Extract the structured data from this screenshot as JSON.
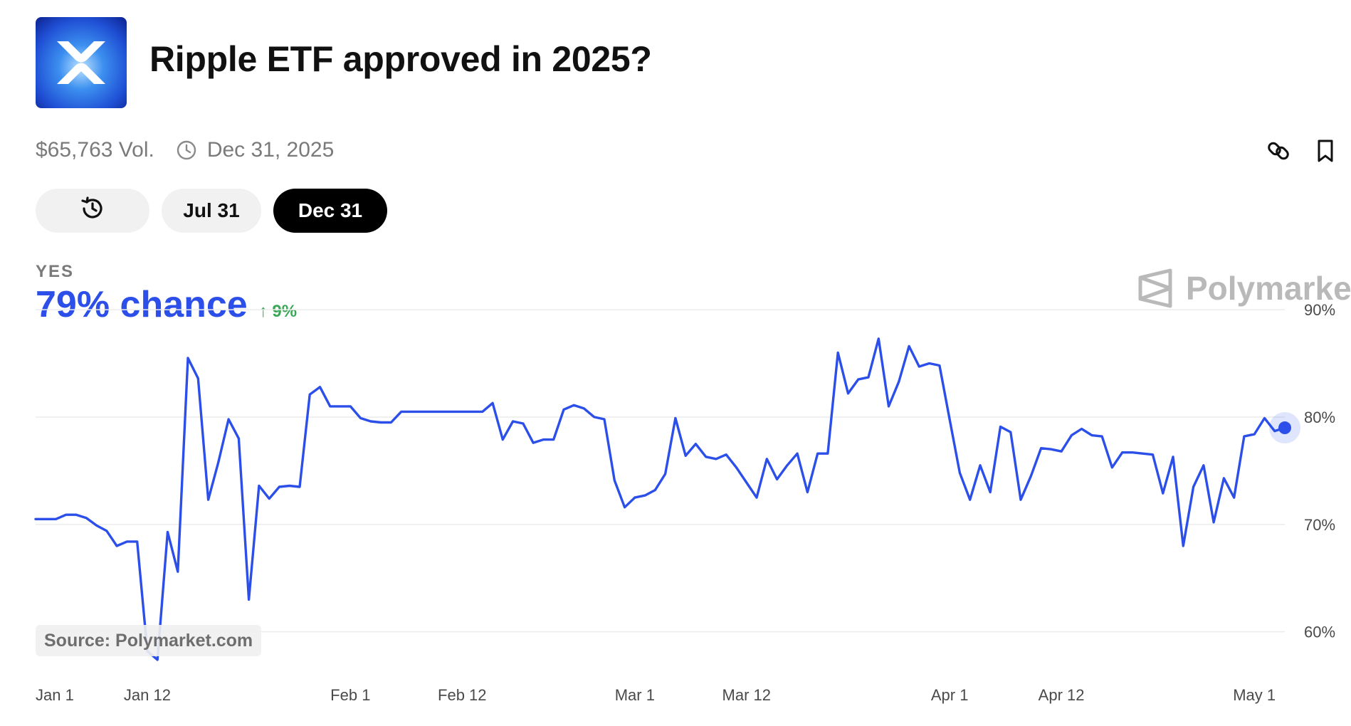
{
  "market": {
    "title": "Ripple ETF approved in 2025?",
    "logo_icon": "xrp-logo-icon",
    "volume": "$65,763 Vol.",
    "end_date": "Dec 31, 2025"
  },
  "actions": {
    "link_icon": "link-icon",
    "bookmark_icon": "bookmark-icon"
  },
  "date_tabs": {
    "history_icon": "history-icon",
    "items": [
      "Jul 31",
      "Dec 31"
    ],
    "active": "Dec 31"
  },
  "outcome": {
    "label": "YES",
    "chance": "79% chance",
    "change": "↑ 9%"
  },
  "brand": {
    "name": "Polymarket"
  },
  "source": "Source: Polymarket.com",
  "colors": {
    "line": "#2b4fe8",
    "up": "#3aa757",
    "active_tab": "#000000"
  },
  "chart_data": {
    "type": "line",
    "series": [
      {
        "values": [
          {
            "x": "Jan 1",
            "y": 70.5
          },
          {
            "x": "Jan 2",
            "y": 70.5
          },
          {
            "x": "Jan 3",
            "y": 70.5
          },
          {
            "x": "Jan 4",
            "y": 70.9
          },
          {
            "x": "Jan 5",
            "y": 70.9
          },
          {
            "x": "Jan 6",
            "y": 70.6
          },
          {
            "x": "Jan 7",
            "y": 69.9
          },
          {
            "x": "Jan 8",
            "y": 69.4
          },
          {
            "x": "Jan 9",
            "y": 68.0
          },
          {
            "x": "Jan 10",
            "y": 68.4
          },
          {
            "x": "Jan 11",
            "y": 68.4
          },
          {
            "x": "Jan 12",
            "y": 58.2
          },
          {
            "x": "Jan 13",
            "y": 57.4
          },
          {
            "x": "Jan 14",
            "y": 69.3
          },
          {
            "x": "Jan 15",
            "y": 65.6
          },
          {
            "x": "Jan 16",
            "y": 85.5
          },
          {
            "x": "Jan 17",
            "y": 83.6
          },
          {
            "x": "Jan 18",
            "y": 72.3
          },
          {
            "x": "Jan 19",
            "y": 75.8
          },
          {
            "x": "Jan 20",
            "y": 79.8
          },
          {
            "x": "Jan 21",
            "y": 78.0
          },
          {
            "x": "Jan 22",
            "y": 63.0
          },
          {
            "x": "Jan 23",
            "y": 73.6
          },
          {
            "x": "Jan 24",
            "y": 72.4
          },
          {
            "x": "Jan 25",
            "y": 73.5
          },
          {
            "x": "Jan 26",
            "y": 73.6
          },
          {
            "x": "Jan 27",
            "y": 73.5
          },
          {
            "x": "Jan 28",
            "y": 82.1
          },
          {
            "x": "Jan 29",
            "y": 82.8
          },
          {
            "x": "Jan 30",
            "y": 81.0
          },
          {
            "x": "Jan 31",
            "y": 81.0
          },
          {
            "x": "Feb 1",
            "y": 81.0
          },
          {
            "x": "Feb 2",
            "y": 79.9
          },
          {
            "x": "Feb 3",
            "y": 79.6
          },
          {
            "x": "Feb 4",
            "y": 79.5
          },
          {
            "x": "Feb 5",
            "y": 79.5
          },
          {
            "x": "Feb 6",
            "y": 80.5
          },
          {
            "x": "Feb 7",
            "y": 80.5
          },
          {
            "x": "Feb 8",
            "y": 80.5
          },
          {
            "x": "Feb 9",
            "y": 80.5
          },
          {
            "x": "Feb 10",
            "y": 80.5
          },
          {
            "x": "Feb 11",
            "y": 80.5
          },
          {
            "x": "Feb 12",
            "y": 80.5
          },
          {
            "x": "Feb 13",
            "y": 80.5
          },
          {
            "x": "Feb 14",
            "y": 80.5
          },
          {
            "x": "Feb 15",
            "y": 81.3
          },
          {
            "x": "Feb 16",
            "y": 77.9
          },
          {
            "x": "Feb 17",
            "y": 79.6
          },
          {
            "x": "Feb 18",
            "y": 79.4
          },
          {
            "x": "Feb 19",
            "y": 77.6
          },
          {
            "x": "Feb 20",
            "y": 77.9
          },
          {
            "x": "Feb 21",
            "y": 77.9
          },
          {
            "x": "Feb 22",
            "y": 80.7
          },
          {
            "x": "Feb 23",
            "y": 81.1
          },
          {
            "x": "Feb 24",
            "y": 80.8
          },
          {
            "x": "Feb 25",
            "y": 80.0
          },
          {
            "x": "Feb 26",
            "y": 79.8
          },
          {
            "x": "Feb 27",
            "y": 74.1
          },
          {
            "x": "Feb 28",
            "y": 71.6
          },
          {
            "x": "Mar 1",
            "y": 72.5
          },
          {
            "x": "Mar 2",
            "y": 72.7
          },
          {
            "x": "Mar 3",
            "y": 73.2
          },
          {
            "x": "Mar 4",
            "y": 74.7
          },
          {
            "x": "Mar 5",
            "y": 79.9
          },
          {
            "x": "Mar 6",
            "y": 76.4
          },
          {
            "x": "Mar 7",
            "y": 77.5
          },
          {
            "x": "Mar 8",
            "y": 76.3
          },
          {
            "x": "Mar 9",
            "y": 76.1
          },
          {
            "x": "Mar 10",
            "y": 76.5
          },
          {
            "x": "Mar 11",
            "y": 75.3
          },
          {
            "x": "Mar 12",
            "y": 73.9
          },
          {
            "x": "Mar 13",
            "y": 72.5
          },
          {
            "x": "Mar 14",
            "y": 76.1
          },
          {
            "x": "Mar 15",
            "y": 74.2
          },
          {
            "x": "Mar 16",
            "y": 75.5
          },
          {
            "x": "Mar 17",
            "y": 76.6
          },
          {
            "x": "Mar 18",
            "y": 73.0
          },
          {
            "x": "Mar 19",
            "y": 76.6
          },
          {
            "x": "Mar 20",
            "y": 76.6
          },
          {
            "x": "Mar 21",
            "y": 86.0
          },
          {
            "x": "Mar 22",
            "y": 82.2
          },
          {
            "x": "Mar 23",
            "y": 83.5
          },
          {
            "x": "Mar 24",
            "y": 83.7
          },
          {
            "x": "Mar 25",
            "y": 87.3
          },
          {
            "x": "Mar 26",
            "y": 81.0
          },
          {
            "x": "Mar 27",
            "y": 83.3
          },
          {
            "x": "Mar 28",
            "y": 86.6
          },
          {
            "x": "Mar 29",
            "y": 84.7
          },
          {
            "x": "Mar 30",
            "y": 85.0
          },
          {
            "x": "Mar 31",
            "y": 84.8
          },
          {
            "x": "Apr 1",
            "y": 79.8
          },
          {
            "x": "Apr 2",
            "y": 74.8
          },
          {
            "x": "Apr 3",
            "y": 72.3
          },
          {
            "x": "Apr 4",
            "y": 75.5
          },
          {
            "x": "Apr 5",
            "y": 73.0
          },
          {
            "x": "Apr 6",
            "y": 79.1
          },
          {
            "x": "Apr 7",
            "y": 78.6
          },
          {
            "x": "Apr 8",
            "y": 72.3
          },
          {
            "x": "Apr 9",
            "y": 74.5
          },
          {
            "x": "Apr 10",
            "y": 77.1
          },
          {
            "x": "Apr 11",
            "y": 77.0
          },
          {
            "x": "Apr 12",
            "y": 76.8
          },
          {
            "x": "Apr 13",
            "y": 78.3
          },
          {
            "x": "Apr 14",
            "y": 78.9
          },
          {
            "x": "Apr 15",
            "y": 78.3
          },
          {
            "x": "Apr 16",
            "y": 78.2
          },
          {
            "x": "Apr 17",
            "y": 75.3
          },
          {
            "x": "Apr 18",
            "y": 76.7
          },
          {
            "x": "Apr 19",
            "y": 76.7
          },
          {
            "x": "Apr 20",
            "y": 76.6
          },
          {
            "x": "Apr 21",
            "y": 76.5
          },
          {
            "x": "Apr 22",
            "y": 72.9
          },
          {
            "x": "Apr 23",
            "y": 76.3
          },
          {
            "x": "Apr 24",
            "y": 68.0
          },
          {
            "x": "Apr 25",
            "y": 73.5
          },
          {
            "x": "Apr 26",
            "y": 75.5
          },
          {
            "x": "Apr 27",
            "y": 70.2
          },
          {
            "x": "Apr 28",
            "y": 74.3
          },
          {
            "x": "Apr 29",
            "y": 72.5
          },
          {
            "x": "Apr 30",
            "y": 78.2
          },
          {
            "x": "May 1",
            "y": 78.4
          },
          {
            "x": "May 2",
            "y": 79.9
          },
          {
            "x": "May 3",
            "y": 78.7
          },
          {
            "x": "May 4",
            "y": 79.0
          }
        ]
      }
    ],
    "x_ticks": [
      "Jan 1",
      "Jan 12",
      "Feb 1",
      "Feb 12",
      "Mar 1",
      "Mar 12",
      "Apr 1",
      "Apr 12",
      "May 1"
    ],
    "y_ticks": [
      60,
      70,
      80,
      90
    ],
    "y_tick_labels": [
      "60%",
      "70%",
      "80%",
      "90%"
    ],
    "ylim": [
      56,
      91
    ],
    "grid": true,
    "y_axis_position": "right"
  }
}
